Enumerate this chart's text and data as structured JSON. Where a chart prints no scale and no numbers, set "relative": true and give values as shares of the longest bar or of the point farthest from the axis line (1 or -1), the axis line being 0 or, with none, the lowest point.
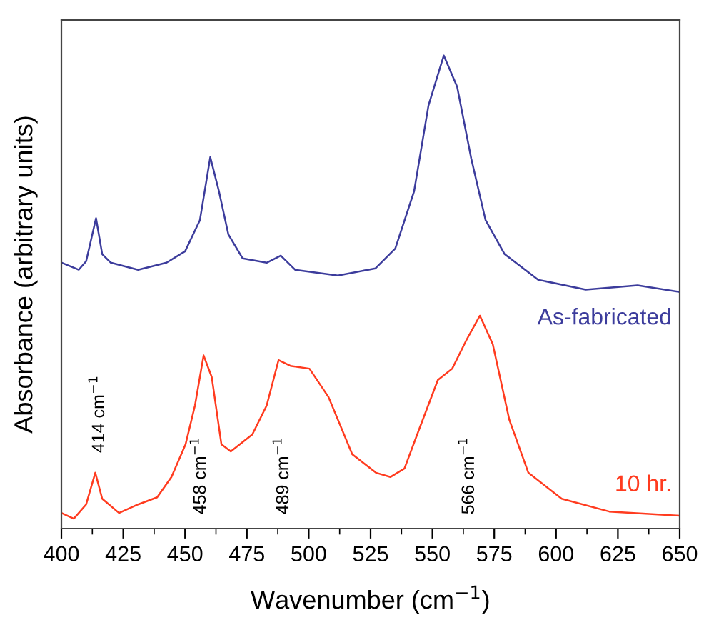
{
  "chart_data": {
    "type": "line",
    "relative": true,
    "xlabel": "Wavenumber (cm$^{−1}$)",
    "ylabel": "Absorbance (arbitrary units)",
    "xlim": [
      400,
      650
    ],
    "xticks": [
      400,
      425,
      450,
      475,
      500,
      525,
      550,
      575,
      600,
      625,
      650
    ],
    "tick_labels": "x",
    "grid": false,
    "legend": false,
    "series": [
      {
        "name": "As-fabricated",
        "color": "#3c3c9c",
        "x": [
          400,
          407,
          410,
          414,
          416.5,
          420,
          431,
          442.5,
          450,
          456,
          460.2,
          463.7,
          467.5,
          473.3,
          483,
          488.7,
          494.5,
          511.8,
          527,
          535,
          542.6,
          548.4,
          554.6,
          560,
          565.7,
          571.5,
          579.2,
          592.7,
          612,
          633,
          650
        ],
        "values": [
          0.562,
          0.547,
          0.565,
          0.656,
          0.58,
          0.562,
          0.547,
          0.562,
          0.586,
          0.652,
          0.785,
          0.713,
          0.622,
          0.571,
          0.562,
          0.577,
          0.547,
          0.535,
          0.55,
          0.592,
          0.713,
          0.894,
          1.0,
          0.934,
          0.782,
          0.652,
          0.58,
          0.526,
          0.505,
          0.514,
          0.5
        ]
      },
      {
        "name": "10 hr.",
        "color": "#ff3b1f",
        "x": [
          400,
          405,
          410,
          413.7,
          416.5,
          423.3,
          431,
          438.7,
          444.5,
          450.2,
          454,
          457.5,
          460.8,
          464.7,
          468.5,
          477.2,
          483,
          487.8,
          492.6,
          500.3,
          508,
          517.6,
          527.2,
          533,
          538.7,
          544.5,
          552.2,
          558,
          563.8,
          569.2,
          574.4,
          581.1,
          588.8,
          602.3,
          621.5,
          650
        ],
        "values": [
          0.033,
          0.021,
          0.051,
          0.118,
          0.063,
          0.033,
          0.051,
          0.066,
          0.109,
          0.178,
          0.26,
          0.366,
          0.32,
          0.178,
          0.163,
          0.199,
          0.26,
          0.356,
          0.344,
          0.338,
          0.278,
          0.157,
          0.118,
          0.109,
          0.127,
          0.208,
          0.314,
          0.338,
          0.399,
          0.45,
          0.39,
          0.23,
          0.118,
          0.063,
          0.036,
          0.027
        ]
      }
    ],
    "annotations": [
      "414 cm$^{−1}$",
      "458 cm$^{−1}$",
      "489 cm$^{−1}$",
      "566 cm$^{−1}$"
    ]
  }
}
